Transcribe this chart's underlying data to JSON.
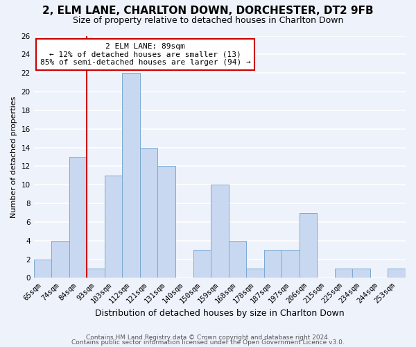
{
  "title": "2, ELM LANE, CHARLTON DOWN, DORCHESTER, DT2 9FB",
  "subtitle": "Size of property relative to detached houses in Charlton Down",
  "xlabel": "Distribution of detached houses by size in Charlton Down",
  "ylabel": "Number of detached properties",
  "bin_labels": [
    "65sqm",
    "74sqm",
    "84sqm",
    "93sqm",
    "103sqm",
    "112sqm",
    "121sqm",
    "131sqm",
    "140sqm",
    "150sqm",
    "159sqm",
    "168sqm",
    "178sqm",
    "187sqm",
    "197sqm",
    "206sqm",
    "215sqm",
    "225sqm",
    "234sqm",
    "244sqm",
    "253sqm"
  ],
  "bar_heights": [
    2,
    4,
    13,
    1,
    11,
    22,
    14,
    12,
    0,
    3,
    10,
    4,
    1,
    3,
    3,
    7,
    0,
    1,
    1,
    0,
    1
  ],
  "bar_color": "#c8d8f0",
  "bar_edge_color": "#7aaad0",
  "ylim": [
    0,
    26
  ],
  "yticks": [
    0,
    2,
    4,
    6,
    8,
    10,
    12,
    14,
    16,
    18,
    20,
    22,
    24,
    26
  ],
  "property_line_label": "2 ELM LANE: 89sqm",
  "annotation_line1": "← 12% of detached houses are smaller (13)",
  "annotation_line2": "85% of semi-detached houses are larger (94) →",
  "footer1": "Contains HM Land Registry data © Crown copyright and database right 2024.",
  "footer2": "Contains public sector information licensed under the Open Government Licence v3.0.",
  "background_color": "#eef2fb",
  "plot_bg_color": "#eef2fb",
  "grid_color": "#ffffff",
  "title_fontsize": 11,
  "subtitle_fontsize": 9,
  "xlabel_fontsize": 9,
  "ylabel_fontsize": 8,
  "tick_fontsize": 7.5,
  "footer_fontsize": 6.5,
  "annot_fontsize": 8,
  "red_line_color": "#cc0000"
}
